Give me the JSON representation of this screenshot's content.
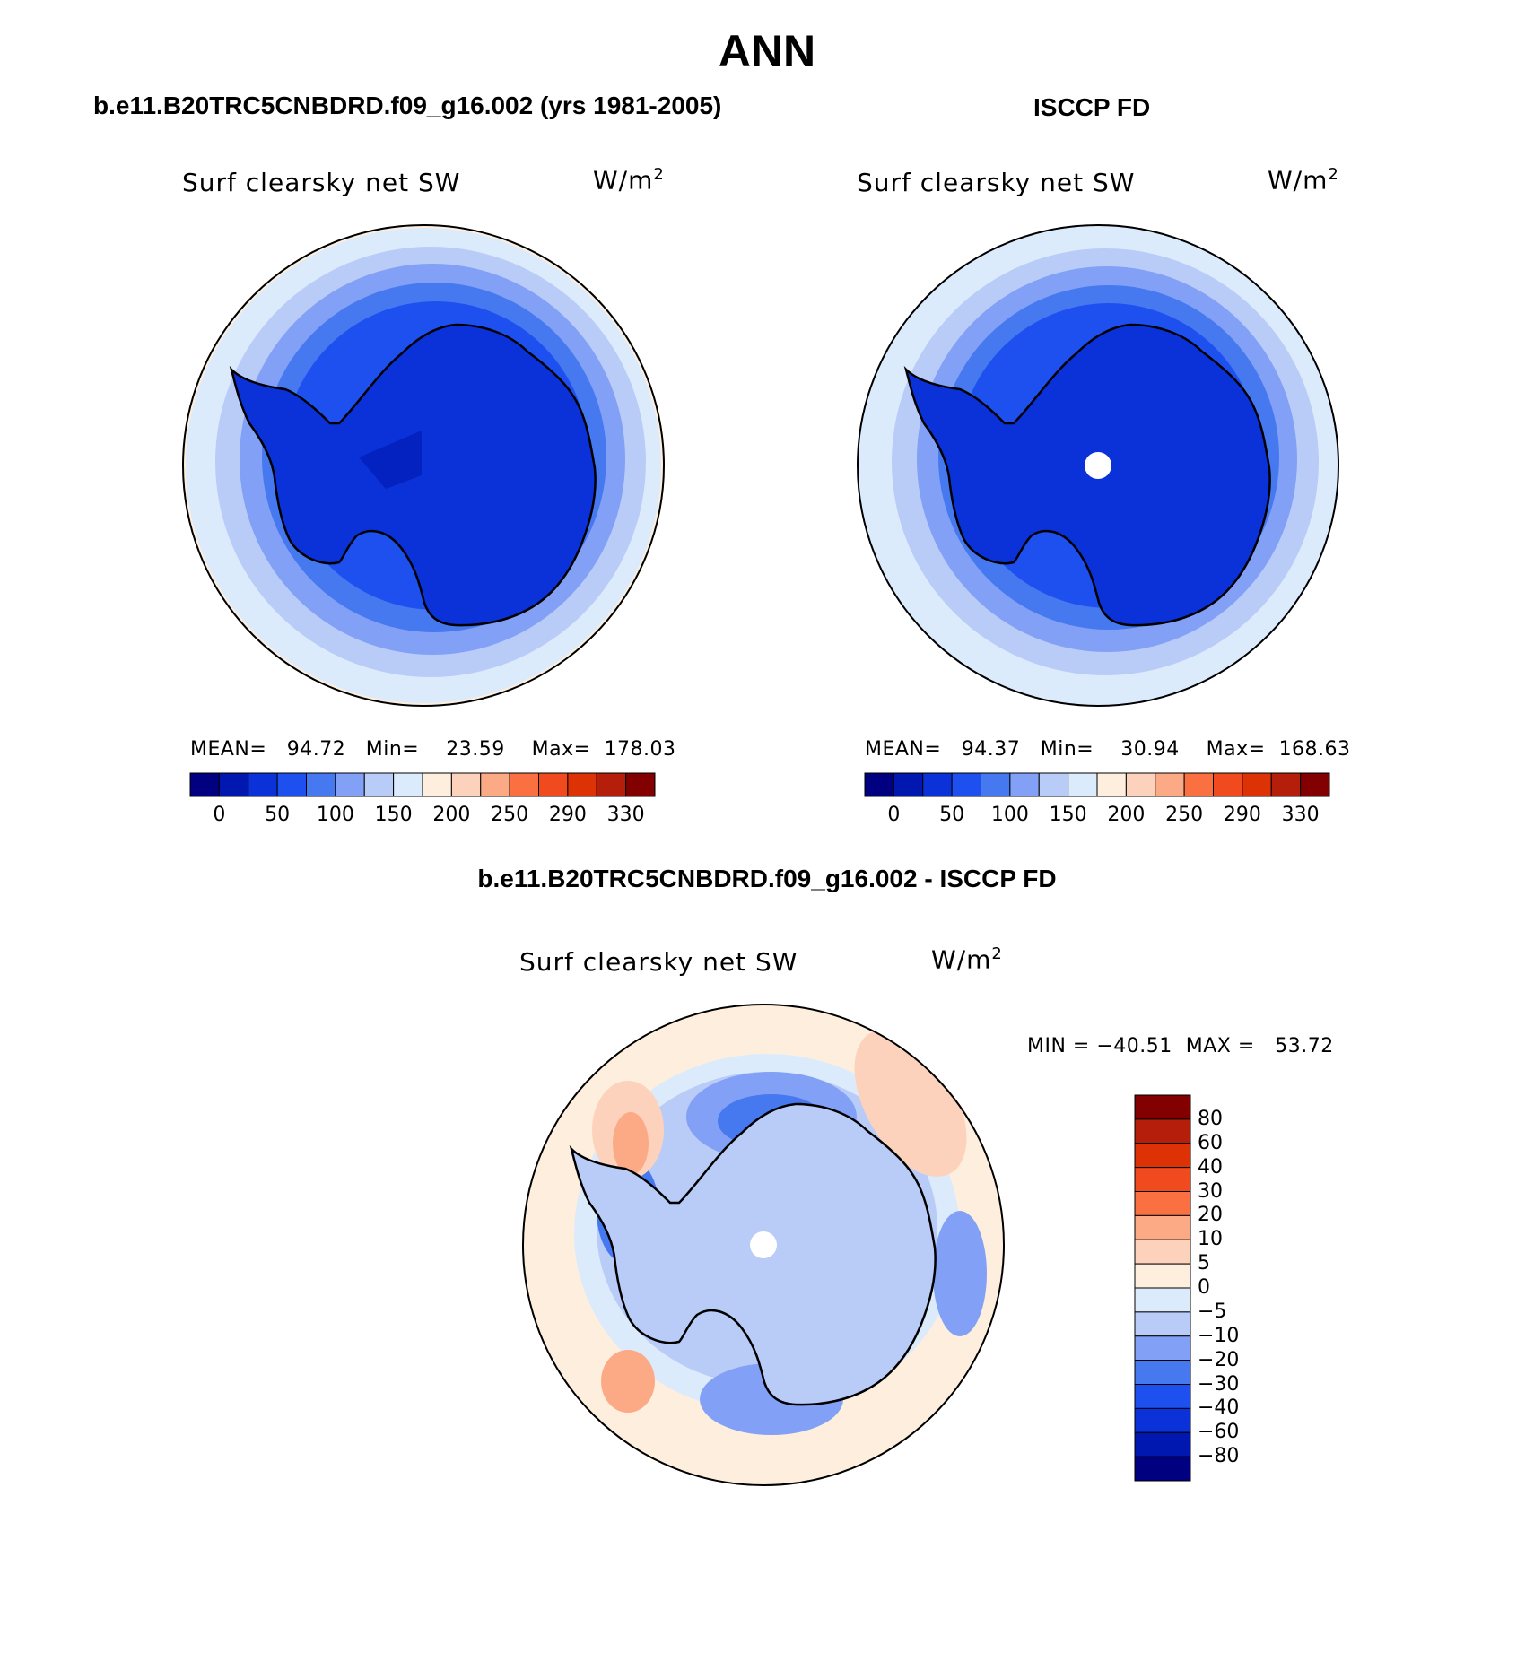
{
  "figure": {
    "main_title": "ANN",
    "left_header": "b.e11.B20TRC5CNBDRD.f09_g16.002 (yrs 1981-2005)",
    "right_header": "ISCCP FD",
    "diff_header": "b.e11.B20TRC5CNBDRD.f09_g16.002 - ISCCP FD"
  },
  "panels": [
    {
      "id": "model",
      "variable": "Surf clearsky net SW",
      "unit_base": "W/m",
      "unit_sup": "2",
      "stats_text": "MEAN=   94.72   Min=    23.59    Max=  178.03"
    },
    {
      "id": "obs",
      "variable": "Surf clearsky net SW",
      "unit_base": "W/m",
      "unit_sup": "2",
      "stats_text": "MEAN=   94.37   Min=    30.94    Max=  168.63"
    },
    {
      "id": "diff",
      "variable": "Surf clearsky net SW",
      "unit_base": "W/m",
      "unit_sup": "2",
      "stats_text": "MIN = −40.51  MAX =   53.72"
    }
  ],
  "abs_colorbar": {
    "colors": [
      "#000080",
      "#0018b0",
      "#0a32d8",
      "#1e50f0",
      "#4678f0",
      "#82a0f5",
      "#b9ccf8",
      "#dcebfc",
      "#fdeedd",
      "#fdd2bc",
      "#fcaa86",
      "#fa7040",
      "#f04a1e",
      "#dc3206",
      "#b41e0a",
      "#820000"
    ],
    "tick_labels": [
      "0",
      "50",
      "100",
      "150",
      "200",
      "250",
      "290",
      "330"
    ]
  },
  "diff_colorbar": {
    "colors_top_to_bottom": [
      "#820000",
      "#b41e0a",
      "#dc3206",
      "#f04a1e",
      "#fa7040",
      "#fcaa86",
      "#fdd2bc",
      "#fdeedd",
      "#dcebfc",
      "#b9ccf8",
      "#82a0f5",
      "#4678f0",
      "#1e50f0",
      "#0a32d8",
      "#0018b0",
      "#000080"
    ],
    "tick_labels": [
      "80",
      "60",
      "40",
      "30",
      "20",
      "10",
      "5",
      "0",
      "−5",
      "−10",
      "−20",
      "−30",
      "−40",
      "−60",
      "−80"
    ]
  },
  "colors": {
    "land_fill": "#0a32d8",
    "coast": "#000000",
    "ocean_outer_model": "#dcebfc",
    "ocean_outer_obs": "#dcebfc",
    "diff_background": "#fdeedd"
  }
}
